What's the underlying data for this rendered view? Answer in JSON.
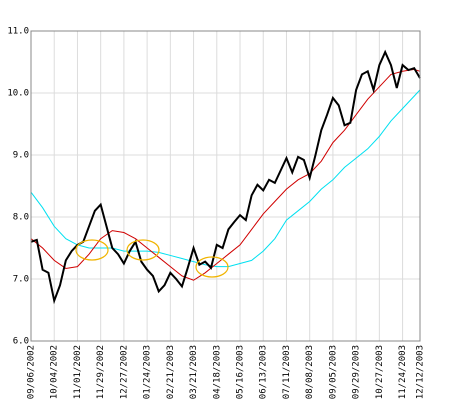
{
  "chart_data": {
    "type": "line",
    "xlim": [
      0,
      67
    ],
    "xticks": [
      {
        "value": 0,
        "label": "09/06/2002"
      },
      {
        "value": 4,
        "label": "10/04/2002"
      },
      {
        "value": 8,
        "label": "11/01/2002"
      },
      {
        "value": 12,
        "label": "11/29/2002"
      },
      {
        "value": 16,
        "label": "12/27/2002"
      },
      {
        "value": 20,
        "label": "01/24/2003"
      },
      {
        "value": 24,
        "label": "02/21/2003"
      },
      {
        "value": 28,
        "label": "03/21/2003"
      },
      {
        "value": 32,
        "label": "04/18/2003"
      },
      {
        "value": 36,
        "label": "05/16/2003"
      },
      {
        "value": 40,
        "label": "06/13/2003"
      },
      {
        "value": 44,
        "label": "07/11/2003"
      },
      {
        "value": 48,
        "label": "08/08/2003"
      },
      {
        "value": 52,
        "label": "09/05/2003"
      },
      {
        "value": 56,
        "label": "09/29/2003"
      },
      {
        "value": 60,
        "label": "10/27/2003"
      },
      {
        "value": 64,
        "label": "11/24/2003"
      },
      {
        "value": 67,
        "label": "12/12/2003"
      }
    ],
    "ylim": [
      6,
      11
    ],
    "yticks": [
      {
        "value": 6,
        "label": "6.0"
      },
      {
        "value": 7,
        "label": "7.0"
      },
      {
        "value": 8,
        "label": "8.0"
      },
      {
        "value": 9,
        "label": "9.0"
      },
      {
        "value": 10,
        "label": "10.0"
      },
      {
        "value": 11,
        "label": "11.0"
      }
    ],
    "grid": true,
    "series": [
      {
        "color": "#00e0f0",
        "x": [
          0,
          2,
          4,
          6,
          8,
          10,
          12,
          14,
          16,
          18,
          20,
          22,
          24,
          26,
          28,
          30,
          32,
          34,
          36,
          38,
          40,
          42,
          44,
          46,
          48,
          50,
          52,
          54,
          56,
          58,
          60,
          62,
          64,
          66,
          67
        ],
        "values": [
          8.4,
          8.15,
          7.85,
          7.65,
          7.55,
          7.5,
          7.5,
          7.5,
          7.45,
          7.45,
          7.45,
          7.43,
          7.38,
          7.33,
          7.28,
          7.23,
          7.2,
          7.2,
          7.25,
          7.3,
          7.45,
          7.65,
          7.95,
          8.1,
          8.25,
          8.45,
          8.6,
          8.8,
          8.95,
          9.1,
          9.3,
          9.55,
          9.75,
          9.95,
          10.05
        ]
      },
      {
        "color": "#d00000",
        "x": [
          0,
          2,
          4,
          6,
          8,
          10,
          12,
          14,
          16,
          18,
          20,
          22,
          24,
          26,
          28,
          30,
          32,
          34,
          36,
          38,
          40,
          42,
          44,
          46,
          48,
          50,
          52,
          54,
          56,
          58,
          60,
          62,
          64,
          66,
          67
        ],
        "values": [
          7.65,
          7.5,
          7.3,
          7.17,
          7.2,
          7.4,
          7.65,
          7.78,
          7.75,
          7.65,
          7.5,
          7.35,
          7.2,
          7.05,
          6.98,
          7.1,
          7.25,
          7.4,
          7.55,
          7.8,
          8.05,
          8.25,
          8.45,
          8.6,
          8.7,
          8.9,
          9.2,
          9.4,
          9.65,
          9.9,
          10.1,
          10.3,
          10.35,
          10.38,
          10.35
        ]
      },
      {
        "color": "#000000",
        "x": [
          0,
          1,
          2,
          3,
          4,
          5,
          6,
          7,
          8,
          9,
          10,
          11,
          12,
          13,
          14,
          15,
          16,
          17,
          18,
          19,
          20,
          21,
          22,
          23,
          24,
          25,
          26,
          27,
          28,
          29,
          30,
          31,
          32,
          33,
          34,
          35,
          36,
          37,
          38,
          39,
          40,
          41,
          42,
          43,
          44,
          45,
          46,
          47,
          48,
          49,
          50,
          51,
          52,
          53,
          54,
          55,
          56,
          57,
          58,
          59,
          60,
          61,
          62,
          63,
          64,
          65,
          66,
          67
        ],
        "values": [
          7.6,
          7.63,
          7.15,
          7.1,
          6.65,
          6.9,
          7.3,
          7.45,
          7.55,
          7.6,
          7.85,
          8.1,
          8.2,
          7.85,
          7.5,
          7.4,
          7.25,
          7.45,
          7.6,
          7.28,
          7.15,
          7.05,
          6.8,
          6.9,
          7.1,
          7.0,
          6.88,
          7.18,
          7.5,
          7.23,
          7.28,
          7.18,
          7.55,
          7.5,
          7.8,
          7.92,
          8.03,
          7.95,
          8.35,
          8.52,
          8.43,
          8.6,
          8.55,
          8.75,
          8.95,
          8.72,
          8.97,
          8.92,
          8.63,
          9.0,
          9.4,
          9.65,
          9.92,
          9.8,
          9.48,
          9.52,
          10.05,
          10.3,
          10.35,
          10.05,
          10.45,
          10.66,
          10.45,
          10.08,
          10.45,
          10.37,
          10.4,
          10.24
        ]
      }
    ]
  }
}
